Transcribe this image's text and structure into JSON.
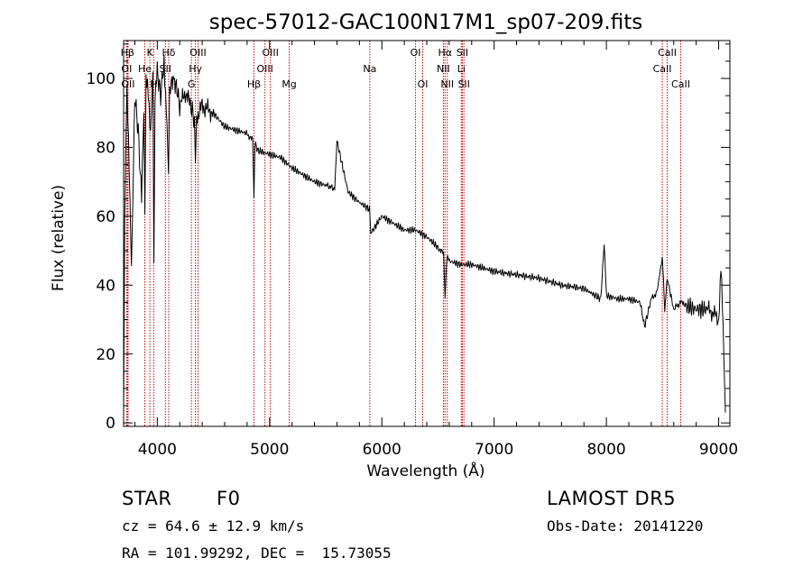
{
  "chart_data": {
    "type": "line",
    "title": "spec-57012-GAC100N17M1_sp07-209.fits",
    "xlabel": "Wavelength (Å)",
    "ylabel": "Flux (relative)",
    "xlim": [
      3700,
      9100
    ],
    "ylim": [
      -1,
      111
    ],
    "x_ticks": [
      4000,
      5000,
      6000,
      7000,
      8000,
      9000
    ],
    "x_tick_labels": [
      "4000",
      "5000",
      "6000",
      "7000",
      "8000",
      "9000"
    ],
    "y_ticks": [
      0,
      20,
      40,
      60,
      80,
      100
    ],
    "y_tick_labels": [
      "0",
      "20",
      "40",
      "60",
      "80",
      "100"
    ],
    "grid": false,
    "line_color": "#000000",
    "marker_color": "#cc0000",
    "spectrum": {
      "x": [
        3700,
        3710,
        3720,
        3730,
        3750,
        3770,
        3800,
        3830,
        3860,
        3880,
        3890,
        3900,
        3920,
        3940,
        3960,
        3970,
        3980,
        4000,
        4030,
        4060,
        4080,
        4100,
        4110,
        4130,
        4170,
        4200,
        4250,
        4300,
        4330,
        4340,
        4350,
        4400,
        4450,
        4500,
        4600,
        4700,
        4800,
        4850,
        4861,
        4870,
        4900,
        5000,
        5100,
        5200,
        5300,
        5400,
        5500,
        5580,
        5600,
        5700,
        5800,
        5890,
        5900,
        6000,
        6100,
        6200,
        6300,
        6400,
        6500,
        6550,
        6563,
        6580,
        6600,
        6700,
        6800,
        6900,
        7000,
        7200,
        7400,
        7600,
        7800,
        7950,
        7980,
        8000,
        8100,
        8200,
        8300,
        8340,
        8400,
        8450,
        8498,
        8520,
        8542,
        8600,
        8662,
        8700,
        8800,
        8900,
        8950,
        9000,
        9020,
        9040,
        9060
      ],
      "y": [
        5,
        60,
        80,
        95,
        75,
        45,
        95,
        85,
        65,
        90,
        60,
        100,
        95,
        85,
        100,
        48,
        96,
        102,
        95,
        105,
        92,
        72,
        97,
        100,
        98,
        92,
        96,
        92,
        88,
        75,
        89,
        92,
        91,
        90,
        86,
        85,
        84,
        82,
        66,
        81,
        79,
        78,
        77,
        74,
        72,
        70,
        69,
        68,
        82,
        67,
        64,
        62,
        55,
        60,
        58,
        56,
        56,
        54,
        51,
        49,
        36,
        49,
        47,
        46,
        46,
        45,
        44,
        43,
        42,
        40,
        39,
        36,
        52,
        37,
        36,
        36,
        35,
        28,
        36,
        38,
        48,
        33,
        42,
        33,
        35,
        34,
        33,
        33,
        32,
        30,
        45,
        28,
        3
      ]
    },
    "lines": [
      {
        "label": "Hβ",
        "x": 3734,
        "row": 1
      },
      {
        "label": "OI",
        "x": 3727,
        "row": 2
      },
      {
        "label": "OII",
        "x": 3740,
        "row": 3
      },
      {
        "label": "K",
        "x": 3934,
        "row": 1
      },
      {
        "label": "He",
        "x": 3889,
        "row": 2
      },
      {
        "label": "H",
        "x": 3968,
        "row": 3
      },
      {
        "label": "Hδ",
        "x": 4102,
        "row": 1
      },
      {
        "label": "SII",
        "x": 4072,
        "row": 2
      },
      {
        "label": "OIII",
        "x": 4363,
        "row": 1
      },
      {
        "label": "Hγ",
        "x": 4340,
        "row": 2
      },
      {
        "label": "G",
        "x": 4304,
        "row": 3
      },
      {
        "label": "OIII",
        "x": 5007,
        "row": 1
      },
      {
        "label": "OIII",
        "x": 4959,
        "row": 2
      },
      {
        "label": "Hβ",
        "x": 4861,
        "row": 3
      },
      {
        "label": "Mg",
        "x": 5175,
        "row": 3
      },
      {
        "label": "Na",
        "x": 5893,
        "row": 2
      },
      {
        "label": "OI",
        "x": 6300,
        "row": 1
      },
      {
        "label": "OI",
        "x": 6364,
        "row": 3
      },
      {
        "label": "Hα",
        "x": 6563,
        "row": 1
      },
      {
        "label": "NII",
        "x": 6548,
        "row": 2
      },
      {
        "label": "NII",
        "x": 6583,
        "row": 3
      },
      {
        "label": "SII",
        "x": 6717,
        "row": 1
      },
      {
        "label": "Li",
        "x": 6708,
        "row": 2
      },
      {
        "label": "SII",
        "x": 6731,
        "row": 3
      },
      {
        "label": "CaII",
        "x": 8542,
        "row": 1
      },
      {
        "label": "CaII",
        "x": 8498,
        "row": 2
      },
      {
        "label": "CaII",
        "x": 8662,
        "row": 3
      }
    ]
  },
  "info": {
    "object_class": "STAR",
    "subclass": "F0",
    "survey": "LAMOST DR5",
    "redshift": "cz = 64.6 ± 12.9 km/s",
    "obs_date": "Obs-Date: 20141220",
    "coordinates": "RA = 101.99292, DEC =  15.73055"
  }
}
